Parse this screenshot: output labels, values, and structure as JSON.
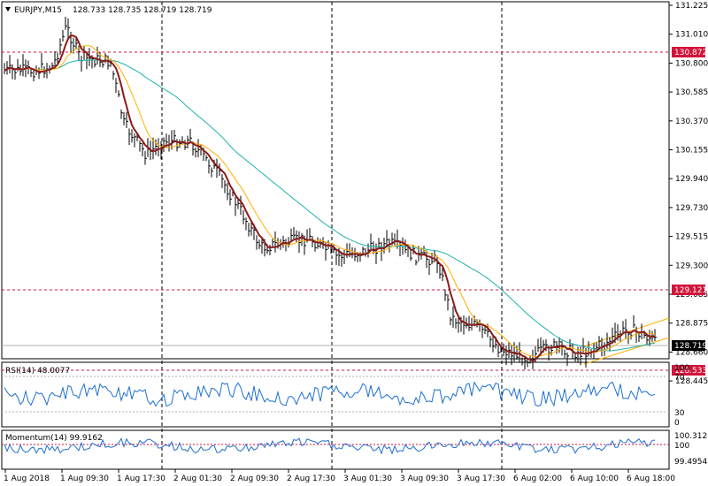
{
  "header": {
    "symbol_label": "EURJPY,M15",
    "ohlc": "128.733 128.735 128.719 128.719"
  },
  "main_panel": {
    "price_ticks": [
      "131.225",
      "131.010",
      "130.800",
      "130.585",
      "130.370",
      "130.155",
      "129.940",
      "129.730",
      "129.515",
      "129.300",
      "129.085",
      "128.875",
      "128.660",
      "128.445"
    ],
    "hlines": [
      {
        "price": "130.872",
        "color": "#d3143c"
      },
      {
        "price": "129.121",
        "color": "#d3143c"
      },
      {
        "price": "128.533",
        "color": "#d3143c"
      }
    ],
    "current": {
      "price": "128.719",
      "color": "#000000"
    }
  },
  "rsi_panel": {
    "label": "RSI(14) 48.0077",
    "levels": [
      "70",
      "30"
    ],
    "axis": [
      "100",
      "0"
    ]
  },
  "momentum_panel": {
    "label": "Momentum(14) 99.9162",
    "axis": [
      "100.3125",
      "100",
      "99.4954"
    ]
  },
  "time_axis": [
    "1 Aug 2018",
    "1 Aug 09:30",
    "1 Aug 17:30",
    "2 Aug 01:30",
    "2 Aug 09:30",
    "2 Aug 17:30",
    "3 Aug 01:30",
    "3 Aug 09:30",
    "3 Aug 17:30",
    "6 Aug 02:00",
    "6 Aug 10:00",
    "6 Aug 18:00"
  ],
  "colors": {
    "bars": "#000000",
    "ma_fast": "#8b1a1a",
    "ma_mid": "#ffb000",
    "ma_slow": "#20b2aa",
    "indicator": "#1e6fd0",
    "level_line": "#d3143c",
    "channel": "#ffb000"
  }
}
